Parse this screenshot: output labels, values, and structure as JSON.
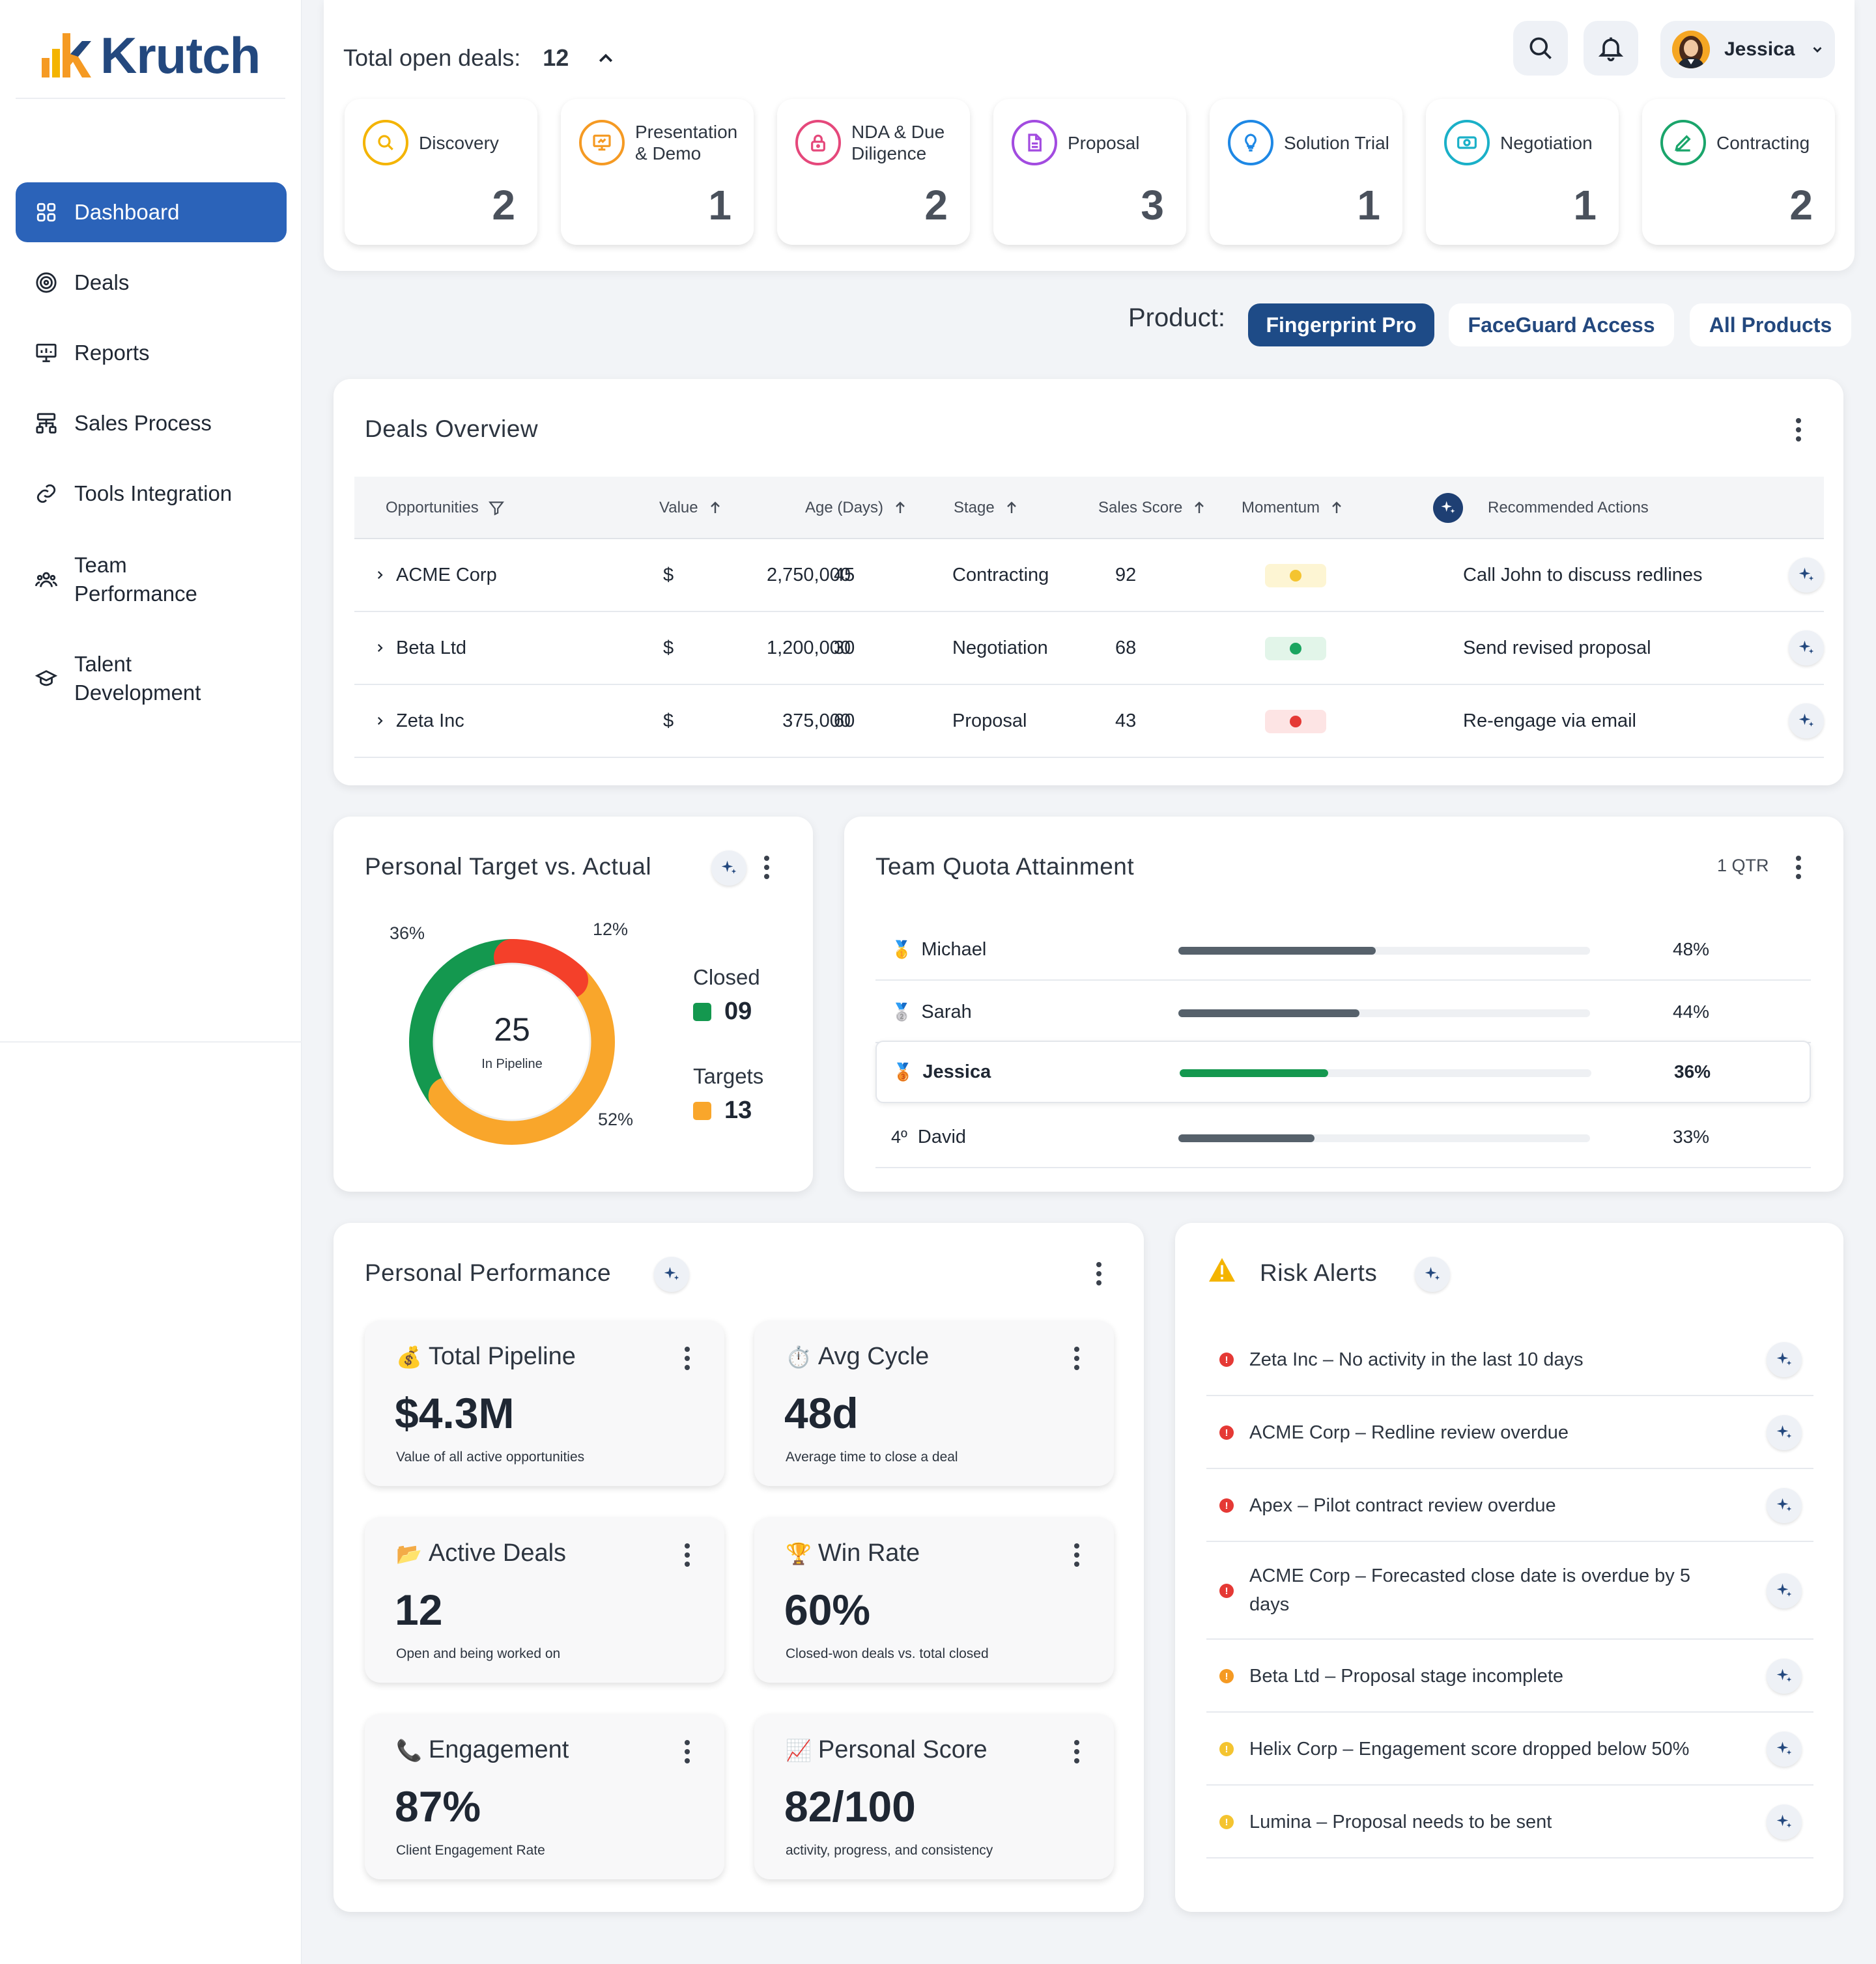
{
  "brand": {
    "name": "Krutch"
  },
  "sidebar": {
    "items": [
      {
        "label": "Dashboard",
        "icon": "dashboard-grid-icon"
      },
      {
        "label": "Deals",
        "icon": "target-icon"
      },
      {
        "label": "Reports",
        "icon": "presentation-chart-icon"
      },
      {
        "label": "Sales Process",
        "icon": "workflow-icon"
      },
      {
        "label": "Tools Integration",
        "icon": "link-icon"
      },
      {
        "label": "Team\nPerformance",
        "icon": "team-icon"
      },
      {
        "label": "Talent\nDevelopment",
        "icon": "graduation-cap-icon"
      }
    ]
  },
  "header": {
    "total_label": "Total open deals:",
    "total_value": "12",
    "user_name": "Jessica",
    "stages": [
      {
        "label": "Discovery",
        "count": "2",
        "color": "#f4b400",
        "icon": "search-icon"
      },
      {
        "label": "Presentation & Demo",
        "count": "1",
        "color": "#f59a23",
        "icon": "presentation-icon"
      },
      {
        "label": "NDA & Due Diligence",
        "count": "2",
        "color": "#e5487b",
        "icon": "lock-icon"
      },
      {
        "label": "Proposal",
        "count": "3",
        "color": "#a24be0",
        "icon": "document-icon"
      },
      {
        "label": "Solution Trial",
        "count": "1",
        "color": "#1e88e5",
        "icon": "lightbulb-icon"
      },
      {
        "label": "Negotiation",
        "count": "1",
        "color": "#1ab0c8",
        "icon": "money-icon"
      },
      {
        "label": "Contracting",
        "count": "2",
        "color": "#1aa56b",
        "icon": "pen-icon"
      }
    ]
  },
  "product": {
    "label": "Product:",
    "options": [
      "Fingerprint Pro",
      "FaceGuard Access",
      "All Products"
    ],
    "selected": "Fingerprint Pro"
  },
  "deals_overview": {
    "title": "Deals Overview",
    "columns": [
      "Opportunities",
      "Value",
      "Age (Days)",
      "Stage",
      "Sales Score",
      "Momentum",
      "Recommended Actions"
    ],
    "rows": [
      {
        "name": "ACME Corp",
        "currency": "$",
        "value": "2,750,000",
        "age": "45",
        "stage": "Contracting",
        "score": "92",
        "momentum": "#f4c430",
        "momentum_bg": "#fdf5d3",
        "action": "Call John to discuss redlines"
      },
      {
        "name": "Beta Ltd",
        "currency": "$",
        "value": "1,200,000",
        "age": "30",
        "stage": "Negotiation",
        "score": "68",
        "momentum": "#1aa560",
        "momentum_bg": "#e2f5e9",
        "action": "Send revised proposal"
      },
      {
        "name": "Zeta Inc",
        "currency": "$",
        "value": "375,000",
        "age": "60",
        "stage": "Proposal",
        "score": "43",
        "momentum": "#e53935",
        "momentum_bg": "#fde4e4",
        "action": "Re-engage via email"
      }
    ]
  },
  "target_vs_actual": {
    "title": "Personal Target vs. Actual",
    "center_value": "25",
    "center_label": "In Pipeline",
    "closed_label": "Closed",
    "closed_value": "09",
    "targets_label": "Targets",
    "targets_value": "13",
    "chart_data": {
      "type": "pie",
      "slices": [
        {
          "pct": 12,
          "label": "12%",
          "color": "#f4402a"
        },
        {
          "pct": 52,
          "label": "52%",
          "color": "#f9a62b"
        },
        {
          "pct": 36,
          "label": "36%",
          "color": "#14984f"
        }
      ]
    }
  },
  "team_quota": {
    "title": "Team Quota Attainment",
    "period": "1 QTR",
    "members": [
      {
        "rank": "🥇",
        "name": "Michael",
        "pct": 48,
        "label": "48%",
        "color": "#56616b"
      },
      {
        "rank": "🥈",
        "name": "Sarah",
        "pct": 44,
        "label": "44%",
        "color": "#56616b"
      },
      {
        "rank": "🥉",
        "name": "Jessica",
        "pct": 36,
        "label": "36%",
        "color": "#14984f"
      },
      {
        "rank": "4º",
        "name": "David",
        "pct": 33,
        "label": "33%",
        "color": "#56616b"
      }
    ]
  },
  "personal_performance": {
    "title": "Personal Performance",
    "kpis": [
      {
        "emoji": "💰",
        "title": "Total Pipeline",
        "value": "$4.3M",
        "desc": "Value of all active opportunities"
      },
      {
        "emoji": "⏱️",
        "title": "Avg Cycle",
        "value": "48d",
        "desc": "Average time to close a deal"
      },
      {
        "emoji": "📂",
        "title": "Active Deals",
        "value": "12",
        "desc": "Open and being worked on"
      },
      {
        "emoji": "🏆",
        "title": "Win Rate",
        "value": "60%",
        "desc": "Closed-won deals vs. total closed"
      },
      {
        "emoji": "📞",
        "title": "Engagement",
        "value": "87%",
        "desc": "Client Engagement Rate"
      },
      {
        "emoji": "📈",
        "title": "Personal Score",
        "value": "82/100",
        "desc": "activity, progress, and consistency"
      }
    ]
  },
  "risk_alerts": {
    "title": "Risk Alerts",
    "items": [
      {
        "text": "Zeta Inc – No activity in the last 10 days",
        "color": "#e53935"
      },
      {
        "text": "ACME Corp – Redline review overdue",
        "color": "#e53935"
      },
      {
        "text": "Apex – Pilot contract review overdue",
        "color": "#e53935"
      },
      {
        "text": "ACME Corp – Forecasted close date is overdue by 5 days",
        "color": "#e53935"
      },
      {
        "text": "Beta Ltd – Proposal stage incomplete",
        "color": "#f59a23"
      },
      {
        "text": "Helix Corp – Engagement score dropped below 50%",
        "color": "#f4c430"
      },
      {
        "text": "Lumina – Proposal needs to be sent",
        "color": "#f4c430"
      }
    ]
  }
}
